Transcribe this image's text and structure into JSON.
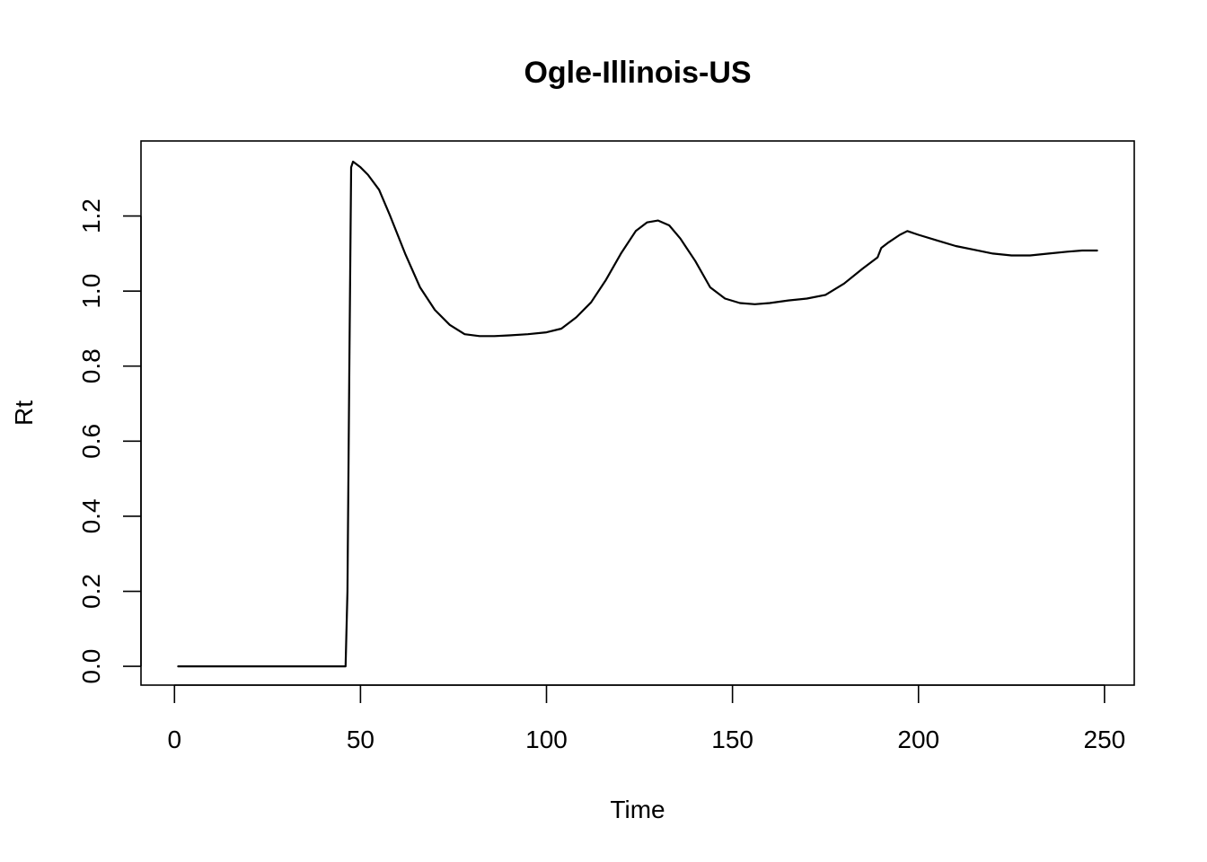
{
  "chart_data": {
    "type": "line",
    "title": "Ogle-Illinois-US",
    "xlabel": "Time",
    "ylabel": "Rt",
    "xlim": [
      -9,
      258
    ],
    "ylim": [
      -0.05,
      1.4
    ],
    "x_ticks": [
      0,
      50,
      100,
      150,
      200,
      250
    ],
    "y_ticks": [
      0.0,
      0.2,
      0.4,
      0.6,
      0.8,
      1.0,
      1.2
    ],
    "x_tick_labels": [
      "0",
      "50",
      "100",
      "150",
      "200",
      "250"
    ],
    "y_tick_labels": [
      "0.0",
      "0.2",
      "0.4",
      "0.6",
      "0.8",
      "1.0",
      "1.2"
    ],
    "grid": false,
    "legend": "none",
    "series": [
      {
        "x": [
          1,
          10,
          20,
          30,
          40,
          46,
          46.5,
          47,
          47.5,
          48,
          50,
          52,
          55,
          58,
          62,
          66,
          70,
          74,
          78,
          82,
          86,
          90,
          95,
          100,
          104,
          108,
          112,
          116,
          120,
          124,
          127,
          130,
          133,
          136,
          140,
          144,
          148,
          152,
          156,
          160,
          165,
          170,
          175,
          180,
          185,
          189,
          190,
          192,
          195,
          197,
          200,
          205,
          210,
          215,
          220,
          225,
          230,
          235,
          240,
          244,
          248
        ],
        "y": [
          0.0,
          0.0,
          0.0,
          0.0,
          0.0,
          0.0,
          0.2,
          0.8,
          1.33,
          1.345,
          1.33,
          1.31,
          1.27,
          1.2,
          1.1,
          1.01,
          0.95,
          0.91,
          0.885,
          0.88,
          0.88,
          0.882,
          0.885,
          0.89,
          0.9,
          0.93,
          0.97,
          1.03,
          1.1,
          1.16,
          1.183,
          1.188,
          1.175,
          1.14,
          1.08,
          1.01,
          0.98,
          0.968,
          0.965,
          0.968,
          0.975,
          0.98,
          0.99,
          1.02,
          1.06,
          1.09,
          1.115,
          1.13,
          1.15,
          1.16,
          1.15,
          1.135,
          1.12,
          1.11,
          1.1,
          1.095,
          1.095,
          1.1,
          1.105,
          1.108,
          1.108
        ]
      }
    ]
  }
}
